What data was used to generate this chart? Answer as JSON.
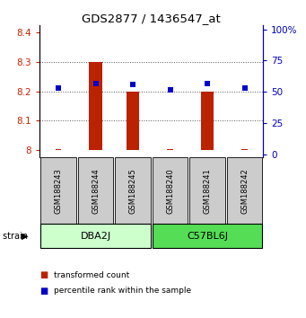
{
  "title": "GDS2877 / 1436547_at",
  "samples": [
    "GSM188243",
    "GSM188244",
    "GSM188245",
    "GSM188240",
    "GSM188241",
    "GSM188242"
  ],
  "transformed_counts": [
    8.0,
    8.3,
    8.2,
    8.0,
    8.2,
    8.0
  ],
  "percentile_ranks": [
    53,
    57,
    56,
    52,
    57,
    53
  ],
  "bar_baseline": 8.0,
  "ylim_left": [
    7.975,
    8.425
  ],
  "ylim_right": [
    -2,
    103
  ],
  "yticks_left": [
    8.0,
    8.1,
    8.2,
    8.3,
    8.4
  ],
  "ytick_labels_left": [
    "8",
    "8.1",
    "8.2",
    "8.3",
    "8.4"
  ],
  "yticks_right": [
    0,
    25,
    50,
    75,
    100
  ],
  "ytick_labels_right": [
    "0",
    "25",
    "50",
    "75",
    "100%"
  ],
  "strains": [
    {
      "name": "DBA2J",
      "samples": [
        0,
        1,
        2
      ],
      "color": "#ccffcc"
    },
    {
      "name": "C57BL6J",
      "samples": [
        3,
        4,
        5
      ],
      "color": "#55dd55"
    }
  ],
  "bar_color": "#bb2200",
  "scatter_color": "#0000cc",
  "left_axis_color": "#cc2200",
  "right_axis_color": "#0000bb",
  "grid_color": "#555555",
  "sample_box_color": "#cccccc",
  "bar_width": 0.35,
  "tiny_bar_height": 0.004,
  "tiny_bar_width": 0.15
}
